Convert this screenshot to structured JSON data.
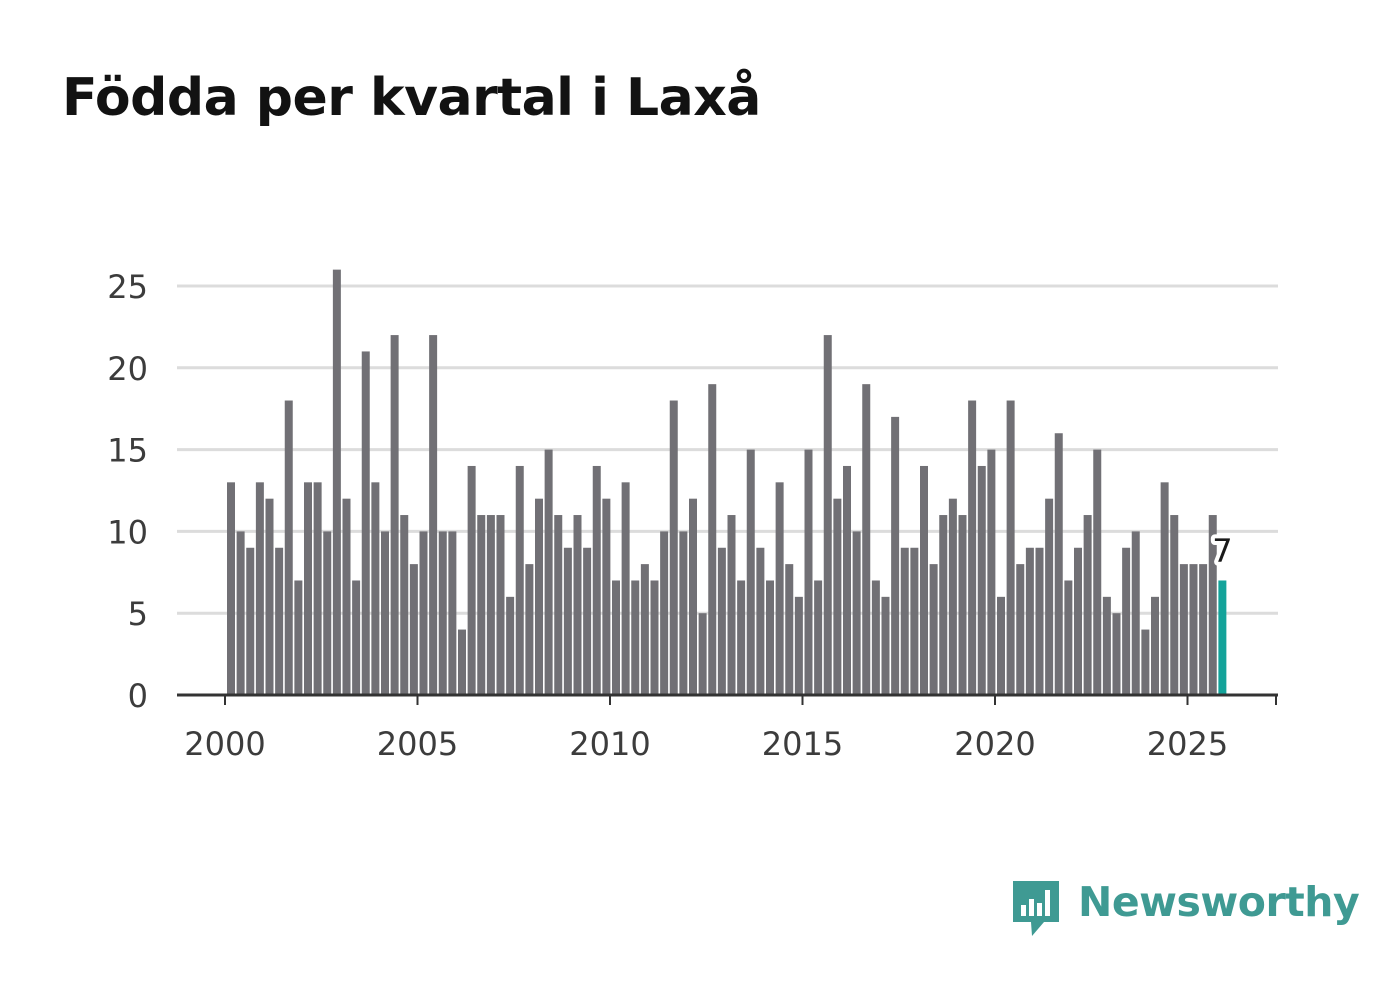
{
  "title": "Födda per kvartal i Laxå",
  "brand": {
    "name": "Newsworthy",
    "icon": "newsworthy-logo-icon",
    "color": "#3f9a93"
  },
  "colors": {
    "bar": "#717075",
    "highlight": "#13a39a",
    "grid": "#dcdcdc",
    "axis": "#333333"
  },
  "chart_data": {
    "type": "bar",
    "title": "Födda per kvartal i Laxå",
    "xlabel": "",
    "ylabel": "",
    "ylim": [
      0,
      25
    ],
    "yticks": [
      0,
      5,
      10,
      15,
      20,
      25
    ],
    "xticks": [
      2000,
      2005,
      2010,
      2015,
      2020,
      2025
    ],
    "grid": true,
    "start_year": 2000,
    "start_quarter": 1,
    "values": [
      13,
      10,
      9,
      13,
      12,
      9,
      18,
      7,
      13,
      13,
      10,
      26,
      12,
      7,
      21,
      13,
      10,
      22,
      11,
      8,
      10,
      22,
      10,
      10,
      4,
      14,
      11,
      11,
      11,
      6,
      14,
      8,
      12,
      15,
      11,
      9,
      11,
      9,
      14,
      12,
      7,
      13,
      7,
      8,
      7,
      10,
      18,
      10,
      12,
      5,
      19,
      9,
      11,
      7,
      15,
      9,
      7,
      13,
      8,
      6,
      15,
      7,
      22,
      12,
      14,
      10,
      19,
      7,
      6,
      17,
      9,
      9,
      14,
      8,
      11,
      12,
      11,
      18,
      14,
      15,
      6,
      18,
      8,
      9,
      9,
      12,
      16,
      7,
      9,
      11,
      15,
      6,
      5,
      9,
      10,
      4,
      6,
      13,
      11,
      8,
      8,
      8,
      11,
      7
    ],
    "highlight_last": true,
    "last_value_label": "7"
  }
}
